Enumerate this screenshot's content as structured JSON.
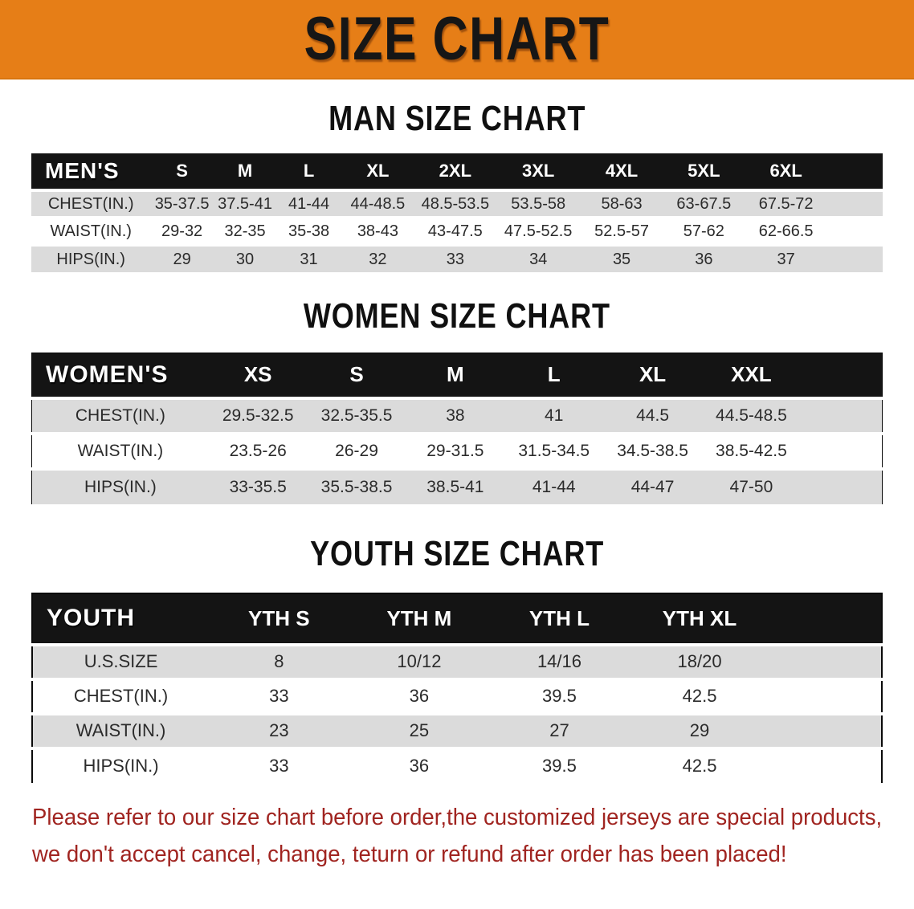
{
  "banner": {
    "title": "SIZE CHART"
  },
  "colors": {
    "banner_orange": "#E67E17",
    "band_black": "#141414",
    "row_gray": "#DBDBDB",
    "row_white": "#FFFFFF",
    "disclaimer_red": "#A02420"
  },
  "sections": [
    {
      "heading": "MAN SIZE CHART",
      "table": {
        "header_label": "MEN'S",
        "columns": [
          "S",
          "M",
          "L",
          "XL",
          "2XL",
          "3XL",
          "4XL",
          "5XL",
          "6XL"
        ],
        "rows": [
          {
            "label": "CHEST(IN.)",
            "values": [
              "35-37.5",
              "37.5-41",
              "41-44",
              "44-48.5",
              "48.5-53.5",
              "53.5-58",
              "58-63",
              "63-67.5",
              "67.5-72"
            ]
          },
          {
            "label": "WAIST(IN.)",
            "values": [
              "29-32",
              "32-35",
              "35-38",
              "38-43",
              "43-47.5",
              "47.5-52.5",
              "52.5-57",
              "57-62",
              "62-66.5"
            ]
          },
          {
            "label": "HIPS(IN.)",
            "values": [
              "29",
              "30",
              "31",
              "32",
              "33",
              "34",
              "35",
              "36",
              "37"
            ]
          }
        ]
      }
    },
    {
      "heading": "WOMEN SIZE CHART",
      "table": {
        "header_label": "WOMEN'S",
        "columns": [
          "XS",
          "S",
          "M",
          "L",
          "XL",
          "XXL"
        ],
        "rows": [
          {
            "label": "CHEST(IN.)",
            "values": [
              "29.5-32.5",
              "32.5-35.5",
              "38",
              "41",
              "44.5",
              "44.5-48.5"
            ]
          },
          {
            "label": "WAIST(IN.)",
            "values": [
              "23.5-26",
              "26-29",
              "29-31.5",
              "31.5-34.5",
              "34.5-38.5",
              "38.5-42.5"
            ]
          },
          {
            "label": "HIPS(IN.)",
            "values": [
              "33-35.5",
              "35.5-38.5",
              "38.5-41",
              "41-44",
              "44-47",
              "47-50"
            ]
          }
        ]
      }
    },
    {
      "heading": "YOUTH SIZE CHART",
      "table": {
        "header_label": "YOUTH",
        "columns": [
          "YTH S",
          "YTH M",
          "YTH L",
          "YTH XL"
        ],
        "rows": [
          {
            "label": "U.S.SIZE",
            "values": [
              "8",
              "10/12",
              "14/16",
              "18/20"
            ]
          },
          {
            "label": "CHEST(IN.)",
            "values": [
              "33",
              "36",
              "39.5",
              "42.5"
            ]
          },
          {
            "label": "WAIST(IN.)",
            "values": [
              "23",
              "25",
              "27",
              "29"
            ]
          },
          {
            "label": "HIPS(IN.)",
            "values": [
              "33",
              "36",
              "39.5",
              "42.5"
            ]
          }
        ]
      }
    }
  ],
  "disclaimer": {
    "line1": "Please refer to our size chart before order,the customized jerseys are special products,",
    "line2": "we don't accept cancel, change, teturn or refund after order has been placed!"
  }
}
